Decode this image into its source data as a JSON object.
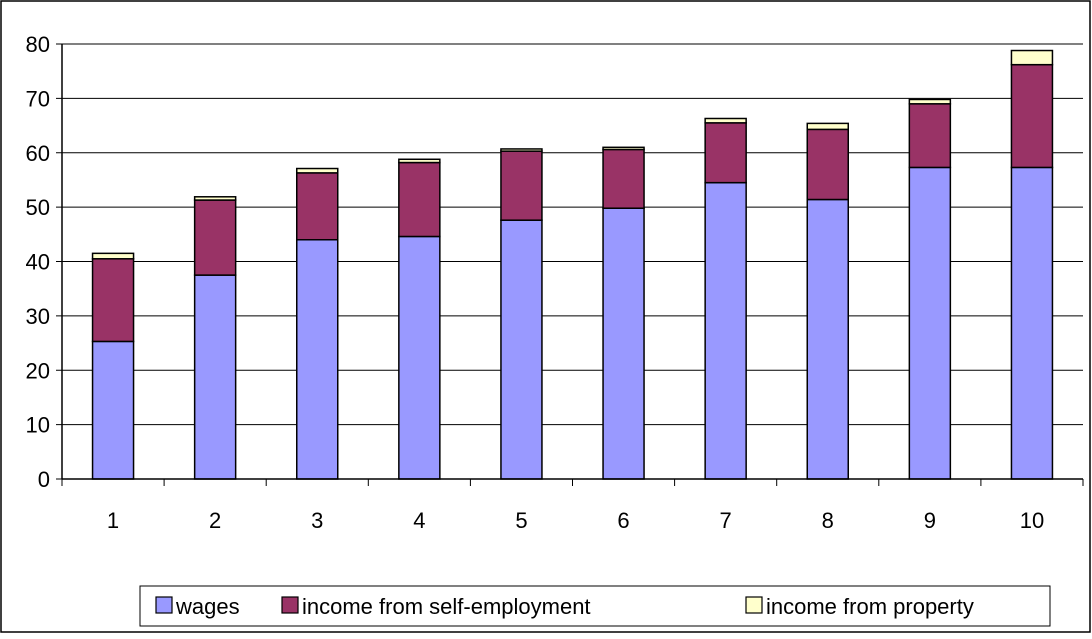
{
  "chart_data": {
    "type": "bar",
    "stacked": true,
    "categories": [
      "1",
      "2",
      "3",
      "4",
      "5",
      "6",
      "7",
      "8",
      "9",
      "10"
    ],
    "series": [
      {
        "name": "wages",
        "color": "#9999ff",
        "values": [
          25.3,
          37.5,
          44.0,
          44.6,
          47.6,
          49.8,
          54.5,
          51.4,
          57.3,
          57.3
        ]
      },
      {
        "name": "income from self-employment",
        "color": "#993366",
        "values": [
          15.2,
          13.8,
          12.3,
          13.6,
          12.7,
          10.8,
          11.0,
          12.9,
          11.7,
          18.9
        ]
      },
      {
        "name": "income from property",
        "color": "#ffffcc",
        "values": [
          1.0,
          0.6,
          0.8,
          0.6,
          0.4,
          0.4,
          0.8,
          1.1,
          0.8,
          2.6
        ]
      }
    ],
    "yticks": [
      "0",
      "10",
      "20",
      "30",
      "40",
      "50",
      "60",
      "70",
      "80"
    ],
    "ylim": [
      0,
      80
    ],
    "grid": true,
    "legend_position": "bottom-center"
  }
}
